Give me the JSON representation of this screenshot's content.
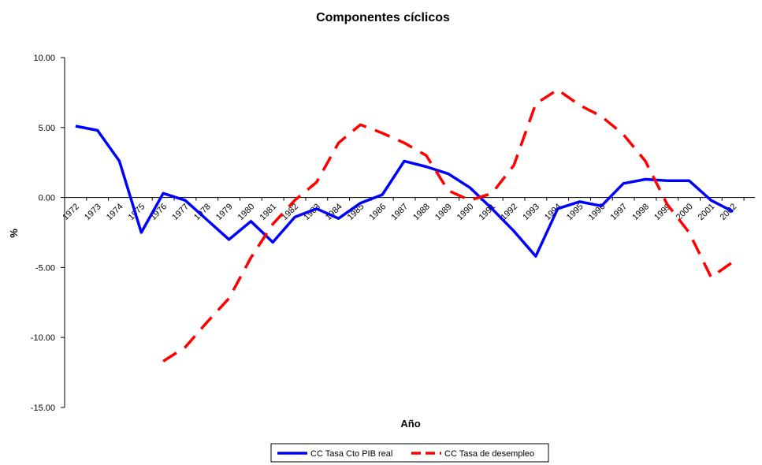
{
  "chart_data": {
    "type": "line",
    "title": "Componentes cíclicos",
    "xlabel": "Año",
    "ylabel": "%",
    "ylim": [
      -15,
      10
    ],
    "yticks": [
      "10.00",
      "5.00",
      "0.00",
      "-5.00",
      "-10.00",
      "-15.00"
    ],
    "ytick_values": [
      10,
      5,
      0,
      -5,
      -10,
      -15
    ],
    "grid": false,
    "legend_position": "bottom",
    "categories": [
      "1972",
      "1973",
      "1974",
      "1975",
      "1976",
      "1977",
      "1978",
      "1979",
      "1980",
      "1981",
      "1982",
      "1983",
      "1984",
      "1985",
      "1986",
      "1987",
      "1988",
      "1989",
      "1990",
      "1991",
      "1992",
      "1993",
      "1994",
      "1995",
      "1996",
      "1997",
      "1998",
      "1999",
      "2000",
      "2001",
      "2002"
    ],
    "series": [
      {
        "name": "CC Tasa Cto PIB real",
        "color": "#0000ff",
        "style": "solid",
        "values": [
          5.1,
          4.8,
          2.6,
          -2.5,
          0.3,
          -0.2,
          -1.6,
          -3.0,
          -1.7,
          -3.2,
          -1.4,
          -0.8,
          -1.5,
          -0.4,
          0.2,
          2.6,
          2.2,
          1.7,
          0.7,
          -0.8,
          -2.4,
          -4.2,
          -0.8,
          -0.3,
          -0.6,
          1.0,
          1.3,
          1.2,
          1.2,
          -0.2,
          -1.0
        ]
      },
      {
        "name": "CC Tasa de desempleo",
        "color": "#ff0000",
        "style": "dashed",
        "values": [
          null,
          null,
          null,
          null,
          -11.7,
          -10.7,
          -8.9,
          -7.2,
          -4.3,
          -1.9,
          -0.2,
          1.1,
          3.9,
          5.2,
          4.6,
          3.9,
          3.0,
          0.5,
          -0.2,
          0.3,
          2.3,
          6.7,
          7.7,
          6.6,
          5.8,
          4.5,
          2.6,
          -0.5,
          -2.5,
          -5.7,
          -4.6
        ]
      }
    ]
  }
}
